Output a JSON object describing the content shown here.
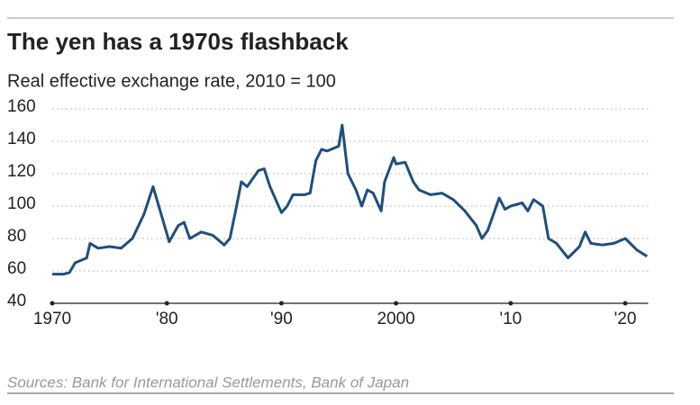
{
  "chart_data": {
    "type": "line",
    "title": "The yen has a 1970s flashback",
    "subtitle": "Real effective exchange rate, 2010 = 100",
    "source": "Sources: Bank for International Settlements, Bank of Japan",
    "x": [
      1970,
      1971,
      1971.5,
      1972,
      1973,
      1973.3,
      1974,
      1975,
      1976,
      1977,
      1978,
      1978.8,
      1979.5,
      1980.2,
      1981,
      1981.5,
      1982,
      1983,
      1984,
      1985,
      1985.5,
      1986,
      1986.5,
      1987,
      1988,
      1988.5,
      1989,
      1990,
      1990.5,
      1991,
      1992,
      1992.5,
      1993,
      1993.5,
      1994,
      1995,
      1995.3,
      1995.8,
      1996.5,
      1997,
      1997.5,
      1998,
      1998.7,
      1999,
      1999.8,
      2000,
      2000.8,
      2001.5,
      2002,
      2003,
      2004,
      2005,
      2006,
      2007,
      2007.5,
      2008,
      2009,
      2009.5,
      2010,
      2011,
      2011.5,
      2012,
      2012.8,
      2013.3,
      2014,
      2015,
      2016,
      2016.5,
      2017,
      2018,
      2019,
      2020,
      2021,
      2021.9
    ],
    "series": [
      {
        "name": "Real effective exchange rate",
        "color": "#1f4e7f",
        "values": [
          58,
          58,
          59,
          65,
          68,
          77,
          74,
          75,
          74,
          80,
          95,
          112,
          95,
          78,
          88,
          90,
          80,
          84,
          82,
          76,
          80,
          97,
          115,
          112,
          122,
          123,
          112,
          96,
          100,
          107,
          107,
          108,
          128,
          135,
          134,
          137,
          150,
          120,
          110,
          100,
          110,
          108,
          97,
          115,
          130,
          126,
          127,
          115,
          110,
          107,
          108,
          104,
          97,
          88,
          80,
          85,
          105,
          98,
          100,
          102,
          97,
          104,
          100,
          80,
          77,
          68,
          75,
          84,
          77,
          76,
          77,
          80,
          73,
          69
        ]
      }
    ],
    "xlim": [
      1970,
      2022
    ],
    "xticks": [
      1970,
      {
        "value": 1980,
        "label": "'80"
      },
      {
        "value": 1990,
        "label": "'90"
      },
      2000,
      {
        "value": 2010,
        "label": "'10"
      },
      {
        "value": 2020,
        "label": "'20"
      }
    ],
    "ylim": [
      40,
      160
    ],
    "yticks": [
      40,
      60,
      80,
      100,
      120,
      140,
      160
    ],
    "grid": true
  }
}
